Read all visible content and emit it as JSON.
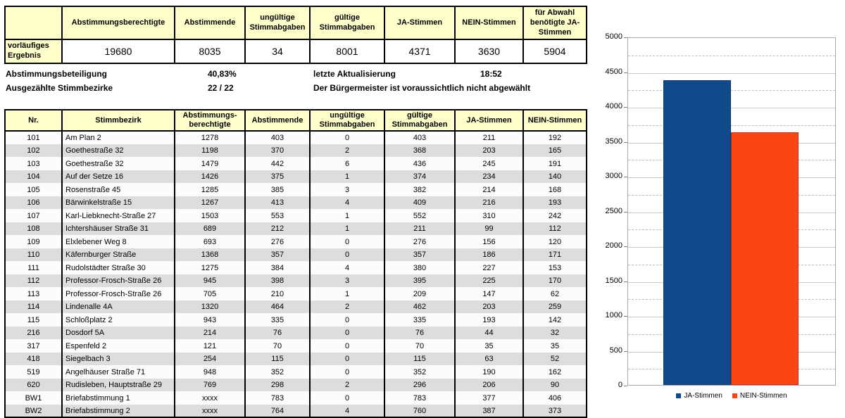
{
  "colors": {
    "header_bg": "#FFFFCC",
    "stripe": "#DDDDDD",
    "ja": "#10498C",
    "nein": "#FB4614"
  },
  "summary_table": {
    "row_label": "vorläufiges Ergebnis",
    "headers": [
      "Abstimmungsberechtigte",
      "Abstimmende",
      "ungültige Stimmabgaben",
      "gültige Stimmabgaben",
      "JA-Stimmen",
      "NEIN-Stimmen",
      "für Abwahl benötigte JA-Stimmen"
    ],
    "values": [
      "19680",
      "8035",
      "34",
      "8001",
      "4371",
      "3630",
      "5904"
    ]
  },
  "info": {
    "beteiligung_label": "Abstimmungsbeteiligung",
    "beteiligung_value": "40,83%",
    "bezirke_label": "Ausgezählte Stimmbezirke",
    "bezirke_value": "22 / 22",
    "update_label": "letzte Aktualisierung",
    "update_value": "18:52",
    "statement": "Der Bürgermeister ist voraussichtlich nicht abgewählt"
  },
  "results_table": {
    "headers": [
      "Nr.",
      "Stimmbezirk",
      "Abstimmungs-berechtigte",
      "Abstimmende",
      "ungültige Stimmabgaben",
      "gültige Stimmabgaben",
      "JA-Stimmen",
      "NEIN-Stimmen"
    ],
    "rows": [
      [
        "101",
        "Am Plan 2",
        "1278",
        "403",
        "0",
        "403",
        "211",
        "192"
      ],
      [
        "102",
        "Goethestraße 32",
        "1198",
        "370",
        "2",
        "368",
        "203",
        "165"
      ],
      [
        "103",
        "Goethestraße 32",
        "1479",
        "442",
        "6",
        "436",
        "245",
        "191"
      ],
      [
        "104",
        "Auf der Setze 16",
        "1426",
        "375",
        "1",
        "374",
        "234",
        "140"
      ],
      [
        "105",
        "Rosenstraße 45",
        "1285",
        "385",
        "3",
        "382",
        "214",
        "168"
      ],
      [
        "106",
        "Bärwinkelstraße 15",
        "1267",
        "413",
        "4",
        "409",
        "216",
        "193"
      ],
      [
        "107",
        "Karl-Liebknecht-Straße 27",
        "1503",
        "553",
        "1",
        "552",
        "310",
        "242"
      ],
      [
        "108",
        "Ichtershäuser Straße 31",
        "689",
        "212",
        "1",
        "211",
        "99",
        "112"
      ],
      [
        "109",
        "Elxlebener Weg 8",
        "693",
        "276",
        "0",
        "276",
        "156",
        "120"
      ],
      [
        "110",
        "Käfernburger Straße",
        "1368",
        "357",
        "0",
        "357",
        "186",
        "171"
      ],
      [
        "111",
        "Rudolstädter Straße 30",
        "1275",
        "384",
        "4",
        "380",
        "227",
        "153"
      ],
      [
        "112",
        "Professor-Frosch-Straße 26",
        "945",
        "398",
        "3",
        "395",
        "225",
        "170"
      ],
      [
        "113",
        "Professor-Frosch-Straße 26",
        "705",
        "210",
        "1",
        "209",
        "147",
        "62"
      ],
      [
        "114",
        "Lindenalle 4A",
        "1320",
        "464",
        "2",
        "462",
        "203",
        "259"
      ],
      [
        "115",
        "Schloßplatz 2",
        "943",
        "335",
        "0",
        "335",
        "193",
        "142"
      ],
      [
        "216",
        "Dosdorf 5A",
        "214",
        "76",
        "0",
        "76",
        "44",
        "32"
      ],
      [
        "317",
        "Espenfeld 2",
        "121",
        "70",
        "0",
        "70",
        "35",
        "35"
      ],
      [
        "418",
        "Siegelbach 3",
        "254",
        "115",
        "0",
        "115",
        "63",
        "52"
      ],
      [
        "519",
        "Angelhäuser Straße 71",
        "948",
        "352",
        "0",
        "352",
        "190",
        "162"
      ],
      [
        "620",
        "Rudisleben, Hauptstraße 29",
        "769",
        "298",
        "2",
        "296",
        "206",
        "90"
      ],
      [
        "BW1",
        "Briefabstimmung 1",
        "xxxx",
        "783",
        "0",
        "783",
        "377",
        "406"
      ],
      [
        "BW2",
        "Briefabstimmung 2",
        "xxxx",
        "764",
        "4",
        "760",
        "387",
        "373"
      ]
    ]
  },
  "chart_data": {
    "type": "bar",
    "title": "",
    "categories": [
      "JA-Stimmen",
      "NEIN-Stimmen"
    ],
    "values": [
      4371,
      3630
    ],
    "colors": [
      "#10498C",
      "#FB4614"
    ],
    "ylim": [
      0,
      5000
    ],
    "y_ticks": [
      5000,
      4500,
      4000,
      3500,
      3000,
      2500,
      2000,
      1500,
      1000,
      500,
      0
    ],
    "minor_tick_interval": 250,
    "grid": "major-solid, minor-dashed",
    "legend_position": "bottom"
  }
}
